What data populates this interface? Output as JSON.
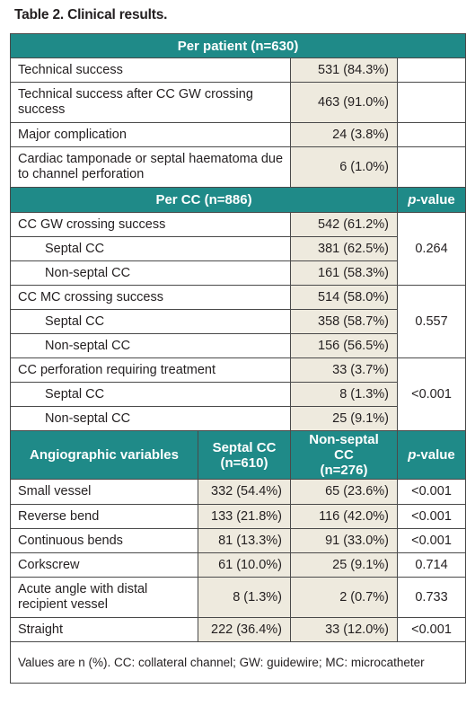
{
  "caption": "Table 2. Clinical results.",
  "per_patient": {
    "header": "Per patient (n=630)",
    "rows": [
      {
        "label": "Technical success",
        "value": "531 (84.3%)"
      },
      {
        "label": "Technical success after CC GW crossing success",
        "value": "463 (91.0%)"
      },
      {
        "label": "Major complication",
        "value": "24 (3.8%)"
      },
      {
        "label": "Cardiac tamponade or septal haematoma due to channel perforation",
        "value": "6 (1.0%)"
      }
    ]
  },
  "per_cc": {
    "header": "Per CC (n=886)",
    "pvalue_header_prefix": "p",
    "pvalue_header_suffix": "-value",
    "groups": [
      {
        "rows": [
          {
            "label": "CC GW crossing success",
            "value": "542 (61.2%)"
          },
          {
            "label": "Septal CC",
            "value": "381 (62.5%)"
          },
          {
            "label": "Non-septal CC",
            "value": "161 (58.3%)"
          }
        ],
        "p": "0.264"
      },
      {
        "rows": [
          {
            "label": "CC MC crossing success",
            "value": "514 (58.0%)"
          },
          {
            "label": "Septal CC",
            "value": "358 (58.7%)"
          },
          {
            "label": "Non-septal CC",
            "value": "156 (56.5%)"
          }
        ],
        "p": "0.557"
      },
      {
        "rows": [
          {
            "label": "CC perforation requiring treatment",
            "value": "33 (3.7%)"
          },
          {
            "label": "Septal CC",
            "value": "8 (1.3%)"
          },
          {
            "label": "Non-septal CC",
            "value": "25 (9.1%)"
          }
        ],
        "p": "<0.001"
      }
    ]
  },
  "angio": {
    "header": "Angiographic variables",
    "col_septal_1": "Septal CC",
    "col_septal_2": "(n=610)",
    "col_nonseptal_1": "Non-septal CC",
    "col_nonseptal_2": "(n=276)",
    "pvalue_header_prefix": "p",
    "pvalue_header_suffix": "-value",
    "rows": [
      {
        "label": "Small vessel",
        "septal": "332 (54.4%)",
        "nonseptal": "65 (23.6%)",
        "p": "<0.001"
      },
      {
        "label": "Reverse bend",
        "septal": "133 (21.8%)",
        "nonseptal": "116 (42.0%)",
        "p": "<0.001"
      },
      {
        "label": "Continuous bends",
        "septal": "81 (13.3%)",
        "nonseptal": "91 (33.0%)",
        "p": "<0.001"
      },
      {
        "label": "Corkscrew",
        "septal": "61 (10.0%)",
        "nonseptal": "25 (9.1%)",
        "p": "0.714"
      },
      {
        "label": "Acute angle with distal recipient vessel",
        "septal": "8 (1.3%)",
        "nonseptal": "2 (0.7%)",
        "p": "0.733"
      },
      {
        "label": "Straight",
        "septal": "222 (36.4%)",
        "nonseptal": "33 (12.0%)",
        "p": "<0.001"
      }
    ]
  },
  "footnote": "Values are n (%). CC: collateral channel; GW: guidewire; MC: microcatheter"
}
